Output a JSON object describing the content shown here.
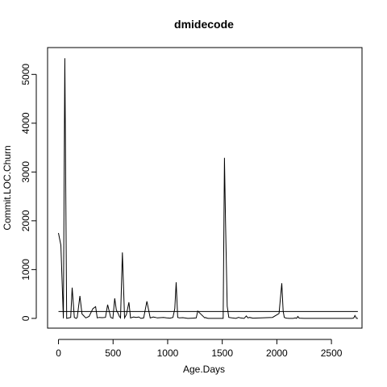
{
  "chart_data": {
    "type": "line",
    "title": "dmidecode",
    "xlabel": "Age.Days",
    "ylabel": "Commit.LOC.Churn",
    "xlim": [
      -100,
      2780
    ],
    "ylim": [
      -200,
      5550
    ],
    "xticks": [
      0,
      500,
      1000,
      1500,
      2000,
      2500
    ],
    "yticks": [
      0,
      1000,
      2000,
      3000,
      4000,
      5000
    ],
    "grid": false,
    "legend": "none",
    "series": [
      {
        "values_x": [
          0,
          22,
          45,
          58,
          75,
          112,
          125,
          145,
          162,
          172,
          196,
          215,
          250,
          280,
          315,
          340,
          355,
          372,
          400,
          430,
          450,
          478,
          498,
          515,
          530,
          545,
          558,
          568,
          585,
          605,
          622,
          645,
          660,
          688,
          712,
          735,
          755,
          780,
          810,
          840,
          868,
          888,
          905,
          932,
          962,
          990,
          1022,
          1048,
          1065,
          1078,
          1092,
          1108,
          1140,
          1185,
          1230,
          1262,
          1275,
          1340,
          1348,
          1358,
          1365,
          1372,
          1390,
          1410,
          1465,
          1498,
          1508,
          1520,
          1530,
          1545,
          1560,
          1588,
          1625,
          1650,
          1665,
          1700,
          1720,
          1735,
          1750,
          1780,
          1860,
          1960,
          2020,
          2045,
          2058,
          2068,
          2078,
          2090,
          2110,
          2150,
          2170,
          2180,
          2192,
          2205,
          2250,
          2400,
          2600,
          2690,
          2705,
          2715,
          2730,
          2742
        ],
        "values_y": [
          1750,
          1500,
          0,
          5330,
          0,
          20,
          630,
          20,
          0,
          20,
          460,
          90,
          10,
          40,
          200,
          240,
          10,
          20,
          15,
          20,
          280,
          20,
          0,
          410,
          170,
          110,
          40,
          10,
          1350,
          10,
          80,
          330,
          10,
          30,
          20,
          30,
          0,
          10,
          350,
          10,
          30,
          20,
          10,
          15,
          20,
          10,
          5,
          20,
          200,
          740,
          20,
          10,
          15,
          0,
          5,
          10,
          150,
          10,
          20,
          5,
          5,
          0,
          0,
          0,
          0,
          0,
          0,
          3290,
          2000,
          250,
          20,
          10,
          0,
          20,
          10,
          0,
          50,
          10,
          20,
          5,
          10,
          20,
          100,
          720,
          150,
          20,
          10,
          5,
          0,
          0,
          10,
          0,
          40,
          5,
          0,
          0,
          0,
          0,
          10,
          60,
          0,
          0
        ]
      },
      {
        "type": "hline",
        "x_range": [
          0,
          2742
        ],
        "value": 140
      }
    ]
  }
}
